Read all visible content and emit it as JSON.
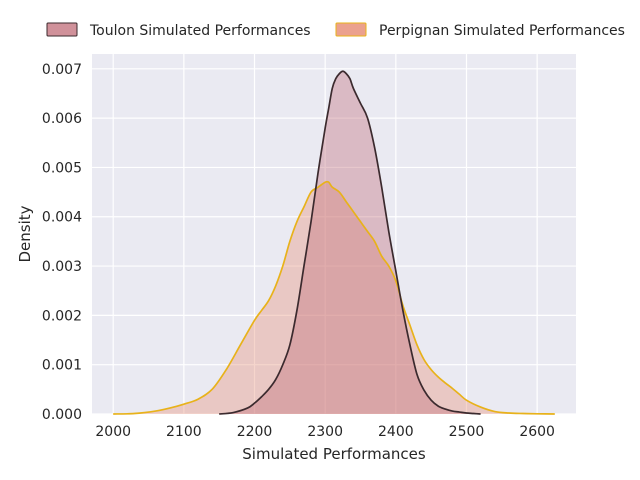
{
  "chart_data": {
    "type": "area",
    "title": "",
    "xlabel": "Simulated Performances",
    "ylabel": "Density",
    "xlim": [
      1970,
      2655
    ],
    "ylim": [
      0,
      0.0073
    ],
    "xticks": [
      2000,
      2100,
      2200,
      2300,
      2400,
      2500,
      2600
    ],
    "xtick_labels": [
      "2000",
      "2100",
      "2200",
      "2300",
      "2400",
      "2500",
      "2600"
    ],
    "yticks": [
      0,
      0.001,
      0.002,
      0.003,
      0.004,
      0.005,
      0.006,
      0.007
    ],
    "ytick_labels": [
      "0.000",
      "0.001",
      "0.002",
      "0.003",
      "0.004",
      "0.005",
      "0.006",
      "0.007"
    ],
    "grid": true,
    "legend_placement": "top-center",
    "series": [
      {
        "name": "Toulon Simulated Performances",
        "fill_color": "#c06c78",
        "line_color": "#3b2a2e",
        "x": [
          2150,
          2170,
          2190,
          2200,
          2210,
          2220,
          2230,
          2240,
          2250,
          2260,
          2270,
          2280,
          2290,
          2300,
          2305,
          2310,
          2315,
          2320,
          2325,
          2330,
          2335,
          2340,
          2350,
          2360,
          2370,
          2380,
          2390,
          2400,
          2410,
          2420,
          2430,
          2440,
          2450,
          2460,
          2470,
          2480,
          2490,
          2500,
          2510,
          2520
        ],
        "y": [
          0.0,
          3e-05,
          0.00012,
          0.00022,
          0.00035,
          0.0005,
          0.0007,
          0.001,
          0.0014,
          0.0021,
          0.003,
          0.0039,
          0.0049,
          0.0058,
          0.0062,
          0.0066,
          0.0068,
          0.0069,
          0.00695,
          0.0069,
          0.0068,
          0.0066,
          0.0063,
          0.006,
          0.0054,
          0.0046,
          0.0037,
          0.0029,
          0.0021,
          0.0014,
          0.0008,
          0.00048,
          0.00028,
          0.00016,
          0.0001,
          6e-05,
          4e-05,
          2e-05,
          1e-05,
          0.0
        ]
      },
      {
        "name": "Perpignan Simulated Performances",
        "fill_color": "#e8917a",
        "line_color": "#e8b21a",
        "x": [
          2000,
          2030,
          2060,
          2080,
          2100,
          2120,
          2140,
          2160,
          2180,
          2200,
          2210,
          2220,
          2230,
          2240,
          2250,
          2260,
          2270,
          2280,
          2290,
          2300,
          2305,
          2310,
          2320,
          2330,
          2340,
          2350,
          2360,
          2370,
          2380,
          2390,
          2400,
          2410,
          2420,
          2430,
          2440,
          2450,
          2460,
          2470,
          2480,
          2490,
          2500,
          2520,
          2540,
          2560,
          2580,
          2600,
          2625
        ],
        "y": [
          0.0,
          1e-05,
          6e-05,
          0.00012,
          0.0002,
          0.0003,
          0.0005,
          0.0009,
          0.0014,
          0.0019,
          0.0021,
          0.0023,
          0.0026,
          0.003,
          0.0035,
          0.0039,
          0.0042,
          0.0045,
          0.0046,
          0.0047,
          0.0047,
          0.0046,
          0.0045,
          0.0043,
          0.0041,
          0.0039,
          0.0037,
          0.0035,
          0.0032,
          0.003,
          0.0027,
          0.0022,
          0.0018,
          0.0014,
          0.0011,
          0.0009,
          0.00075,
          0.00063,
          0.00052,
          0.0004,
          0.00028,
          0.00014,
          5e-05,
          2e-05,
          1e-05,
          4e-06,
          0.0
        ]
      }
    ]
  }
}
